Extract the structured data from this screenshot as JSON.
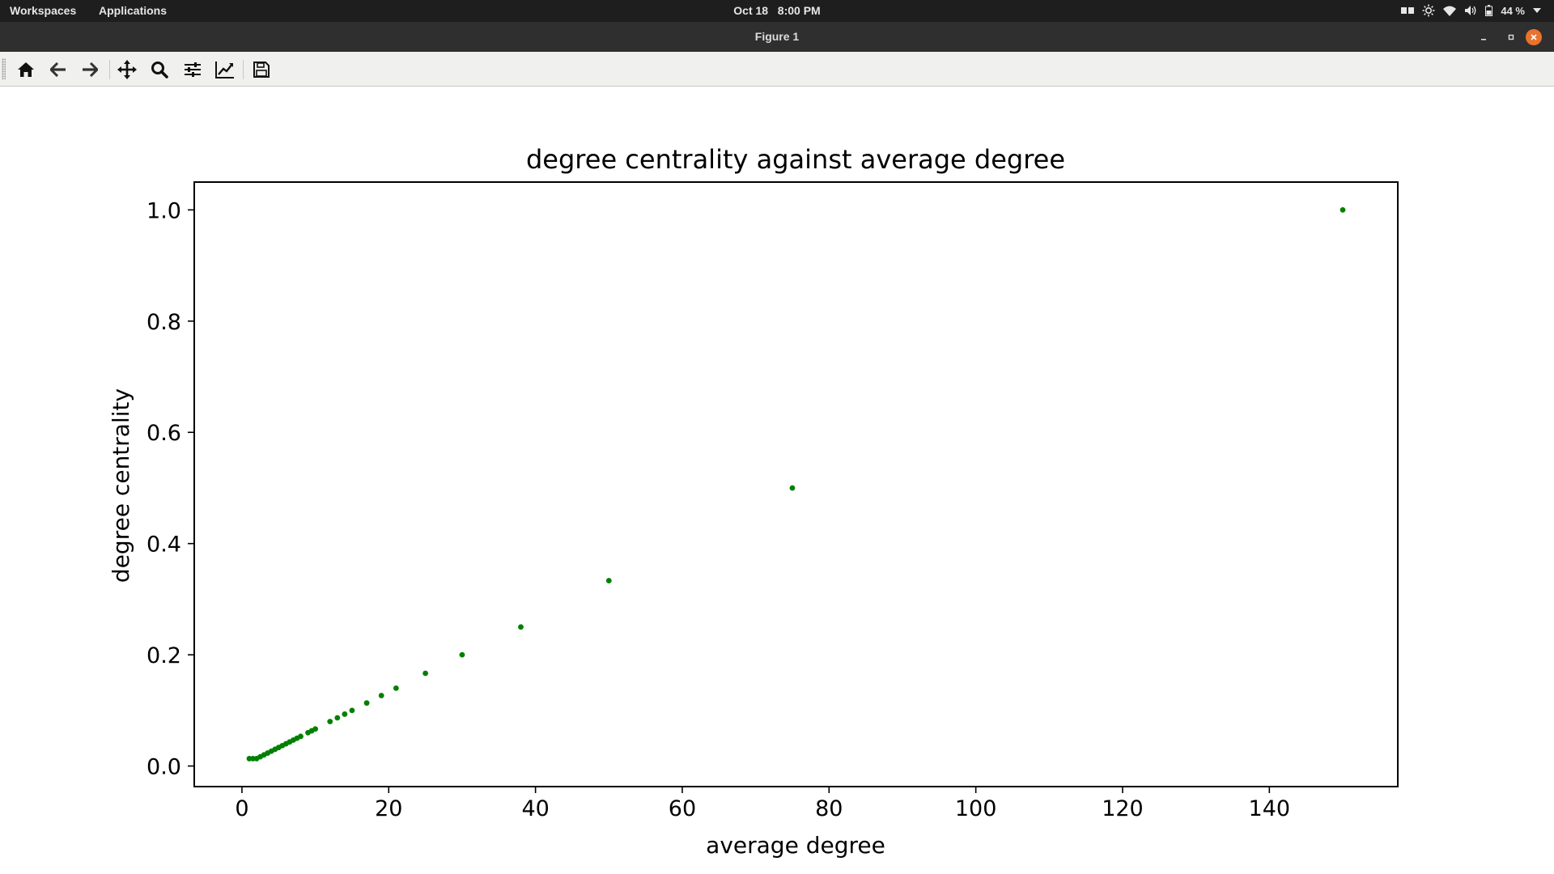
{
  "topbar": {
    "workspaces": "Workspaces",
    "applications": "Applications",
    "date": "Oct 18",
    "time": "8:00 PM",
    "battery": "44 %"
  },
  "window": {
    "title": "Figure 1"
  },
  "toolbar": {
    "icons": [
      "home-icon",
      "back-arrow-icon",
      "forward-arrow-icon",
      "pan-icon",
      "zoom-icon",
      "subplots-icon",
      "edit-curve-icon",
      "save-icon"
    ]
  },
  "colors": {
    "marker": "#008000",
    "topbar": "#1e1e1e",
    "titlebar": "#2f2f2f",
    "close": "#e8732e"
  },
  "chart_data": {
    "type": "scatter",
    "title": "degree centrality against average degree",
    "xlabel": "average degree",
    "ylabel": "degree centrality",
    "xlim": [
      -6.5,
      157.5
    ],
    "ylim": [
      -0.037,
      1.05
    ],
    "xticks": [
      0,
      20,
      40,
      60,
      80,
      100,
      120,
      140
    ],
    "yticks": [
      0.0,
      0.2,
      0.4,
      0.6,
      0.8,
      1.0
    ],
    "grid": false,
    "marker_color": "#008000",
    "x": [
      1,
      1.5,
      2,
      2.5,
      3,
      3.5,
      4,
      4.5,
      5,
      5.5,
      6,
      6.5,
      7,
      7.5,
      8,
      9,
      9.5,
      10,
      12,
      13,
      14,
      15,
      17,
      19,
      21,
      25,
      30,
      38,
      50,
      75,
      150
    ],
    "y": [
      0.0133,
      0.0133,
      0.0133,
      0.0167,
      0.02,
      0.0233,
      0.0267,
      0.03,
      0.0333,
      0.0367,
      0.04,
      0.0433,
      0.0467,
      0.05,
      0.0533,
      0.06,
      0.0633,
      0.0667,
      0.08,
      0.0867,
      0.0933,
      0.1,
      0.1133,
      0.1267,
      0.14,
      0.1667,
      0.2,
      0.25,
      0.3333,
      0.5,
      1.0
    ]
  }
}
